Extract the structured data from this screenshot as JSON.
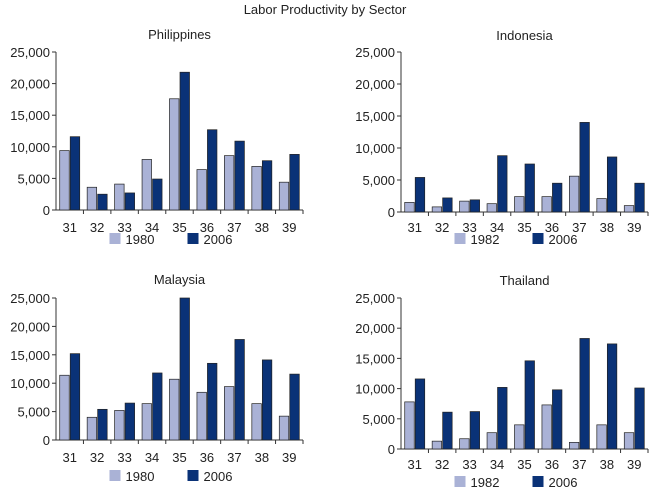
{
  "figure_title": "Labor Productivity by Sector",
  "colors": {
    "light": "#aab2d6",
    "dark": "#0a3277",
    "axis": "#333333"
  },
  "chart_data": [
    {
      "type": "bar",
      "title": "Philippines",
      "categories": [
        "31",
        "32",
        "33",
        "34",
        "35",
        "36",
        "37",
        "38",
        "39"
      ],
      "ylim": [
        0,
        25000
      ],
      "yticks": [
        "0",
        "5,000",
        "10,000",
        "15,000",
        "20,000",
        "25,000"
      ],
      "series": [
        {
          "name": "1980",
          "values": [
            9400,
            3600,
            4100,
            8000,
            17600,
            6400,
            8600,
            6900,
            4400
          ]
        },
        {
          "name": "2006",
          "values": [
            11600,
            2500,
            2700,
            4900,
            21800,
            12700,
            10900,
            7800,
            8800
          ]
        }
      ]
    },
    {
      "type": "bar",
      "title": "Indonesia",
      "categories": [
        "31",
        "32",
        "33",
        "34",
        "35",
        "36",
        "37",
        "38",
        "39"
      ],
      "ylim": [
        0,
        25000
      ],
      "yticks": [
        "0",
        "5,000",
        "10,000",
        "15,000",
        "20,000",
        "25,000"
      ],
      "series": [
        {
          "name": "1982",
          "values": [
            1500,
            800,
            1700,
            1300,
            2400,
            2400,
            5600,
            2100,
            1000
          ]
        },
        {
          "name": "2006",
          "values": [
            5400,
            2200,
            1900,
            8800,
            7500,
            4500,
            14000,
            8600,
            4500
          ]
        }
      ]
    },
    {
      "type": "bar",
      "title": "Malaysia",
      "categories": [
        "31",
        "32",
        "33",
        "34",
        "35",
        "36",
        "37",
        "38",
        "39"
      ],
      "ylim": [
        0,
        25000
      ],
      "yticks": [
        "0",
        "5,000",
        "10,000",
        "15,000",
        "20,000",
        "25,000"
      ],
      "series": [
        {
          "name": "1980",
          "values": [
            11400,
            4000,
            5200,
            6400,
            10700,
            8400,
            9400,
            6400,
            4200
          ]
        },
        {
          "name": "2006",
          "values": [
            15200,
            5400,
            6500,
            11800,
            25000,
            13500,
            17700,
            14100,
            11600
          ]
        }
      ]
    },
    {
      "type": "bar",
      "title": "Thailand",
      "categories": [
        "31",
        "32",
        "33",
        "34",
        "35",
        "36",
        "37",
        "38",
        "39"
      ],
      "ylim": [
        0,
        25000
      ],
      "yticks": [
        "0",
        "5,000",
        "10,000",
        "15,000",
        "20,000",
        "25,000"
      ],
      "series": [
        {
          "name": "1982",
          "values": [
            7800,
            1300,
            1700,
            2700,
            4000,
            7300,
            1100,
            4000,
            2700
          ]
        },
        {
          "name": "2006",
          "values": [
            11600,
            6100,
            6200,
            10200,
            14600,
            9800,
            18300,
            17400,
            10100
          ]
        }
      ]
    }
  ]
}
